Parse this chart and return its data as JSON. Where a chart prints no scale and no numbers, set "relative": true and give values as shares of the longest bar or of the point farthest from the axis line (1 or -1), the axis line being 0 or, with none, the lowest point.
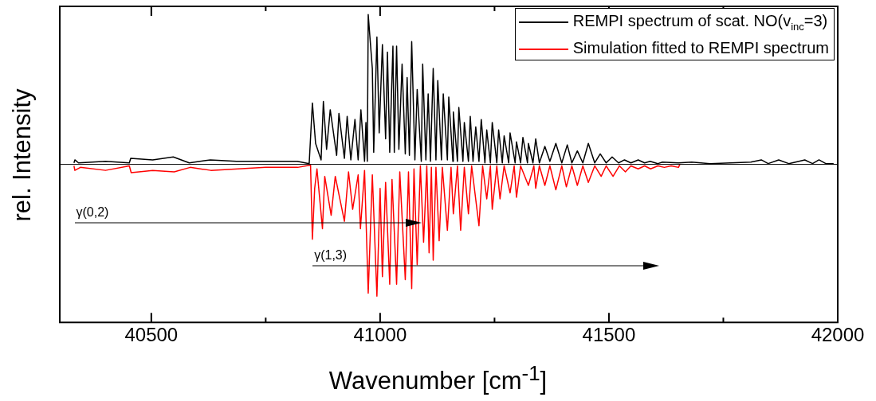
{
  "chart_data": {
    "type": "line",
    "relative": true,
    "xlabel": "Wavenumber [cm$^{-1}$]",
    "ylabel": "rel. Intensity",
    "xlim": [
      40300,
      42000
    ],
    "xticks": [
      {
        "value": 40500,
        "label": "40500"
      },
      {
        "value": 40750,
        "label": null
      },
      {
        "value": 41000,
        "label": "41000"
      },
      {
        "value": 41250,
        "label": null
      },
      {
        "value": 41500,
        "label": "41500"
      },
      {
        "value": 41750,
        "label": null
      },
      {
        "value": 42000,
        "label": "42000"
      }
    ],
    "legend": "top right",
    "marker": "none",
    "line_style": "solid",
    "grid": false,
    "annotations": [
      "γ(0,2)",
      "γ(1,3)"
    ],
    "series": [
      {
        "name": "REMPI spectrum of scat. NO(v$_{inc}$=3)",
        "color": "#000000",
        "x": [
          40331,
          40333,
          40341,
          40400,
          40452,
          40455,
          40503,
          40548,
          40583,
          40629,
          40686,
          40745,
          40819,
          40845,
          40852,
          40859,
          40871,
          40876,
          40883,
          40891,
          40905,
          40910,
          40922,
          40928,
          40936,
          40945,
          40952,
          40958,
          40966,
          40969,
          40972,
          40974,
          40983,
          40986,
          40993,
          40998,
          41005,
          41012,
          41016,
          41021,
          41028,
          41031,
          41036,
          41041,
          41048,
          41055,
          41059,
          41064,
          41069,
          41076,
          41081,
          41090,
          41093,
          41100,
          41105,
          41110,
          41116,
          41122,
          41126,
          41134,
          41138,
          41147,
          41150,
          41159,
          41160,
          41169,
          41172,
          41181,
          41184,
          41193,
          41197,
          41203,
          41209,
          41216,
          41221,
          41229,
          41233,
          41241,
          41245,
          41255,
          41259,
          41267,
          41271,
          41281,
          41284,
          41295,
          41298,
          41307,
          41312,
          41322,
          41324,
          41334,
          41340,
          41348,
          41360,
          41371,
          41384,
          41397,
          41409,
          41419,
          41431,
          41443,
          41455,
          41469,
          41481,
          41494,
          41507,
          41521,
          41534,
          41548,
          41564,
          41578,
          41590,
          41607,
          41617,
          41652,
          41681,
          41721,
          41810,
          41833,
          41848,
          41871,
          41893,
          41928,
          41945,
          41959,
          41974,
          41991
        ],
        "values": [
          0.01,
          0.03,
          0.01,
          0.02,
          0.01,
          0.04,
          0.03,
          0.05,
          0.01,
          0.03,
          0.02,
          0.02,
          0.02,
          0.005,
          0.41,
          0.14,
          0.03,
          0.42,
          0.1,
          0.365,
          0.06,
          0.34,
          0.04,
          0.32,
          0.03,
          0.3,
          0.03,
          0.365,
          0.02,
          0.28,
          0.02,
          1.0,
          0.64,
          0.08,
          0.85,
          0.21,
          0.8,
          0.17,
          0.75,
          0.08,
          0.79,
          0.08,
          0.79,
          0.1,
          0.67,
          0.07,
          0.58,
          0.06,
          0.82,
          0.03,
          0.5,
          0.02,
          0.67,
          0.03,
          0.47,
          0.02,
          0.64,
          0.03,
          0.56,
          0.03,
          0.47,
          0.03,
          0.45,
          0.02,
          0.35,
          0.02,
          0.38,
          0.02,
          0.28,
          0.02,
          0.32,
          0.02,
          0.25,
          0.02,
          0.3,
          0.01,
          0.23,
          0.01,
          0.28,
          0.01,
          0.23,
          0.01,
          0.19,
          0.01,
          0.21,
          0.01,
          0.15,
          0.01,
          0.18,
          0.01,
          0.14,
          0.01,
          0.17,
          0.01,
          0.12,
          0.02,
          0.14,
          0.01,
          0.13,
          0.01,
          0.09,
          0.01,
          0.14,
          0.01,
          0.07,
          0.01,
          0.05,
          0.01,
          0.03,
          0.01,
          0.03,
          0.01,
          0.02,
          0.005,
          0.015,
          0.01,
          0.015,
          0.005,
          0.015,
          0.03,
          0.005,
          0.03,
          0.005,
          0.03,
          0.005,
          0.03,
          0.005,
          0.005
        ]
      },
      {
        "name": "Simulation fitted to REMPI spectrum",
        "color": "#ff0000",
        "x": [
          40331,
          40333,
          40345,
          40400,
          40452,
          40456,
          40503,
          40550,
          40585,
          40630,
          40690,
          40750,
          40820,
          40848,
          40852,
          40857,
          40862,
          40874,
          40879,
          40893,
          40902,
          40922,
          40931,
          40940,
          40952,
          40957,
          40966,
          40974,
          40983,
          40993,
          41000,
          41005,
          41012,
          41021,
          41026,
          41036,
          41043,
          41055,
          41062,
          41069,
          41074,
          41081,
          41088,
          41095,
          41102,
          41107,
          41112,
          41116,
          41122,
          41129,
          41136,
          41147,
          41155,
          41160,
          41169,
          41176,
          41184,
          41193,
          41200,
          41216,
          41224,
          41233,
          41241,
          41245,
          41255,
          41262,
          41271,
          41284,
          41293,
          41298,
          41307,
          41324,
          41336,
          41340,
          41348,
          41360,
          41371,
          41384,
          41397,
          41407,
          41419,
          41431,
          41443,
          41455,
          41469,
          41483,
          41494,
          41509,
          41523,
          41536,
          41548,
          41564,
          41578,
          41591,
          41607,
          41621,
          41636,
          41652,
          41655
        ],
        "values": [
          -0.01,
          -0.04,
          -0.02,
          -0.04,
          -0.01,
          -0.055,
          -0.04,
          -0.05,
          -0.02,
          -0.04,
          -0.03,
          -0.02,
          -0.02,
          -0.005,
          -0.5,
          -0.16,
          -0.03,
          -0.43,
          -0.08,
          -0.34,
          -0.08,
          -0.38,
          -0.05,
          -0.3,
          -0.07,
          -0.43,
          -0.04,
          -0.86,
          -0.07,
          -0.88,
          -0.16,
          -0.75,
          -0.12,
          -0.8,
          -0.1,
          -0.8,
          -0.05,
          -0.77,
          -0.05,
          -0.83,
          -0.03,
          -0.67,
          -0.01,
          -0.52,
          -0.01,
          -0.59,
          -0.02,
          -0.64,
          -0.02,
          -0.51,
          -0.02,
          -0.44,
          -0.02,
          -0.33,
          -0.01,
          -0.44,
          -0.02,
          -0.33,
          -0.01,
          -0.41,
          -0.01,
          -0.23,
          -0.01,
          -0.3,
          -0.01,
          -0.23,
          -0.01,
          -0.19,
          -0.01,
          -0.22,
          -0.01,
          -0.14,
          -0.01,
          -0.16,
          -0.01,
          -0.14,
          -0.01,
          -0.17,
          -0.01,
          -0.15,
          -0.01,
          -0.14,
          -0.01,
          -0.12,
          -0.01,
          -0.08,
          -0.01,
          -0.08,
          -0.01,
          -0.05,
          -0.01,
          -0.03,
          -0.01,
          -0.03,
          -0.01,
          -0.02,
          -0.01,
          -0.02,
          0
        ]
      }
    ]
  }
}
